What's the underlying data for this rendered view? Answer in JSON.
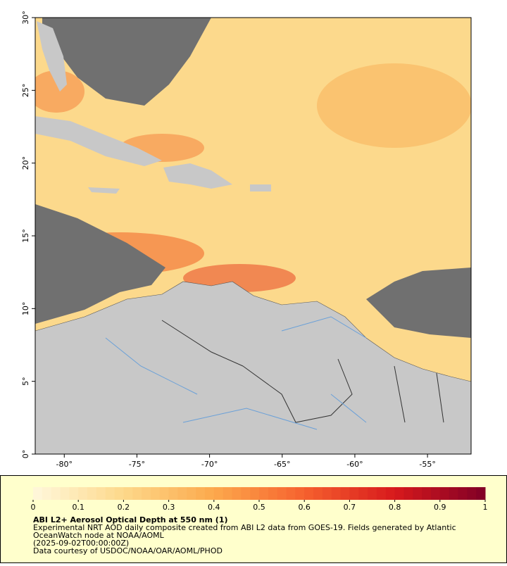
{
  "map": {
    "xlim": [
      -82,
      -52
    ],
    "ylim": [
      0,
      30
    ],
    "xticks": [
      {
        "value": -80,
        "label": "-80°"
      },
      {
        "value": -75,
        "label": "-75°"
      },
      {
        "value": -70,
        "label": "-70°"
      },
      {
        "value": -65,
        "label": "-65°"
      },
      {
        "value": -60,
        "label": "-60°"
      },
      {
        "value": -55,
        "label": "-55°"
      }
    ],
    "yticks": [
      {
        "value": 0,
        "label": "0°"
      },
      {
        "value": 5,
        "label": "5°"
      },
      {
        "value": 10,
        "label": "10°"
      },
      {
        "value": 15,
        "label": "15°"
      },
      {
        "value": 20,
        "label": "20°"
      },
      {
        "value": 25,
        "label": "25°"
      },
      {
        "value": 30,
        "label": "30°"
      }
    ]
  },
  "colorbar": {
    "lim": [
      0,
      1
    ],
    "ticks": [
      0,
      0.1,
      0.2,
      0.3,
      0.4,
      0.5,
      0.6,
      0.7,
      0.8,
      0.9,
      1
    ],
    "colormap": [
      "#fff8dc",
      "#fdd88a",
      "#fca94c",
      "#f6612e",
      "#d7191c",
      "#800026"
    ]
  },
  "caption": {
    "title": "ABI L2+ Aerosol Optical Depth at 550 nm (1)",
    "lines": [
      "Experimental NRT AOD daily composite created from ABI L2 data from GOES-19. Fields generated by Atlantic",
      "OceanWatch node at NOAA/AOML",
      "(2025-09-02T00:00:00Z)",
      "Data courtesy of USDOC/NOAA/OAR/AOML/PHOD"
    ]
  }
}
